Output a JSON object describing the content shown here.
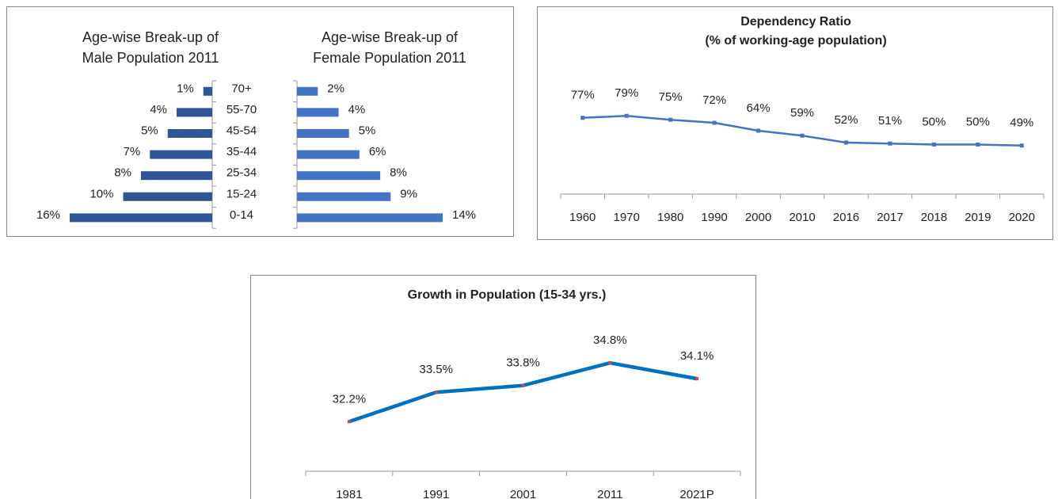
{
  "chart_data": [
    {
      "type": "hbar",
      "title": [
        "Age-wise Break-up of",
        "Male Population 2011"
      ],
      "categories": [
        "70+",
        "55-70",
        "45-54",
        "35-44",
        "25-34",
        "15-24",
        "0-14"
      ],
      "values": [
        1,
        4,
        5,
        7,
        8,
        10,
        16
      ],
      "value_labels": [
        "1%",
        "4%",
        "5%",
        "7%",
        "8%",
        "10%",
        "16%"
      ],
      "color": "#2f5597",
      "xlim": [
        0,
        16
      ],
      "x_reversed": true
    },
    {
      "type": "hbar",
      "title": [
        "Age-wise Break-up of",
        "Female Population 2011"
      ],
      "values": [
        2,
        4,
        5,
        6,
        8,
        9,
        14
      ],
      "value_labels": [
        "2%",
        "4%",
        "5%",
        "6%",
        "8%",
        "9%",
        "14%"
      ],
      "color": "#4472c4",
      "xlim": [
        0,
        14
      ],
      "x_reversed": false
    },
    {
      "type": "line",
      "title": [
        "Dependency Ratio",
        "(% of working-age population)"
      ],
      "categories": [
        "1960",
        "1970",
        "1980",
        "1990",
        "2000",
        "2010",
        "2016",
        "2017",
        "2018",
        "2019",
        "2020"
      ],
      "values": [
        77,
        79,
        75,
        72,
        64,
        59,
        52,
        51,
        50,
        50,
        49
      ],
      "value_labels": [
        "77%",
        "79%",
        "75%",
        "72%",
        "64%",
        "59%",
        "52%",
        "51%",
        "50%",
        "50%",
        "49%"
      ],
      "color": "#4472c4",
      "marker_color": "#4472c4",
      "ylim": [
        0,
        120
      ]
    },
    {
      "type": "line",
      "title": [
        "Growth in Population (15-34 yrs.)"
      ],
      "categories": [
        "1981",
        "1991",
        "2001",
        "2011",
        "2021P"
      ],
      "values": [
        32.2,
        33.5,
        33.8,
        34.8,
        34.1
      ],
      "value_labels": [
        "32.2%",
        "33.5%",
        "33.8%",
        "34.8%",
        "34.1%"
      ],
      "color": "#0070c0",
      "marker_color": "#c0504d",
      "ylim": [
        30,
        36
      ]
    }
  ]
}
